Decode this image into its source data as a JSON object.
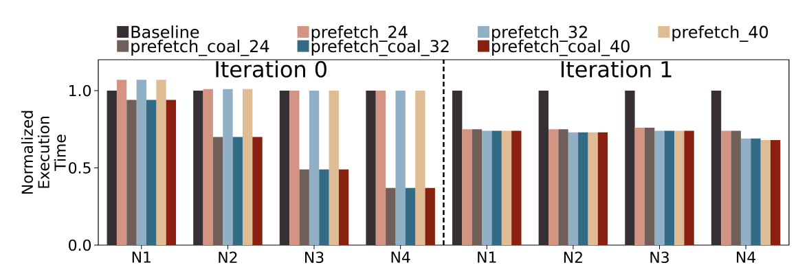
{
  "chart_data": {
    "type": "bar",
    "categories": [
      "N1",
      "N2",
      "N3",
      "N4",
      "N1",
      "N2",
      "N3",
      "N4"
    ],
    "ylabel": "Normalized Execution Time",
    "ylim": [
      0,
      1.2
    ],
    "yticks": [
      {
        "value": 0,
        "label": "0.0"
      },
      {
        "value": 0.5,
        "label": "0.5"
      },
      {
        "value": 1,
        "label": "1.0"
      }
    ],
    "legend": "top",
    "grid": false,
    "annotations": [
      "Iteration 0",
      "Iteration 1"
    ],
    "series": [
      {
        "name": "Baseline",
        "color": "#363035",
        "values": [
          1.0,
          1.0,
          1.0,
          1.0,
          1.0,
          1.0,
          1.0,
          1.0
        ]
      },
      {
        "name": "prefetch_24",
        "color": "#d39483",
        "values": [
          1.07,
          1.01,
          1.0,
          1.0,
          0.75,
          0.75,
          0.76,
          0.74
        ]
      },
      {
        "name": "prefetch_coal_24",
        "color": "#705f58",
        "values": [
          0.94,
          0.7,
          0.49,
          0.37,
          0.75,
          0.75,
          0.76,
          0.74
        ]
      },
      {
        "name": "prefetch_32",
        "color": "#91afc5",
        "values": [
          1.07,
          1.01,
          1.0,
          1.0,
          0.74,
          0.73,
          0.74,
          0.69
        ]
      },
      {
        "name": "prefetch_coal_32",
        "color": "#336b87",
        "values": [
          0.94,
          0.7,
          0.49,
          0.37,
          0.74,
          0.73,
          0.74,
          0.69
        ]
      },
      {
        "name": "prefetch_40",
        "color": "#e0bc94",
        "values": [
          1.07,
          1.01,
          1.0,
          1.0,
          0.74,
          0.73,
          0.74,
          0.68
        ]
      },
      {
        "name": "prefetch_coal_40",
        "color": "#8a200f",
        "values": [
          0.94,
          0.7,
          0.49,
          0.37,
          0.74,
          0.73,
          0.74,
          0.68
        ]
      }
    ]
  }
}
